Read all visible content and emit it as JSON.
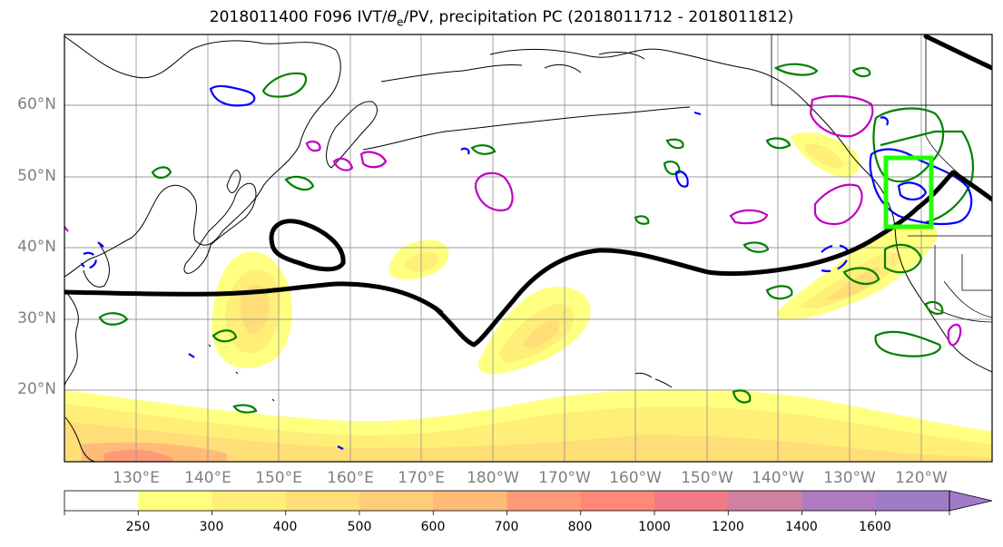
{
  "title": {
    "prefix": "2018011400 F096 IVT/",
    "theta": "θ",
    "theta_sub": "e",
    "suffix": "/PV, precipitation PC (2018011712 - 2018011812)"
  },
  "map": {
    "lat_labels": [
      "60°N",
      "50°N",
      "40°N",
      "30°N",
      "20°N"
    ],
    "lon_labels": [
      "130°E",
      "140°E",
      "150°E",
      "160°E",
      "170°E",
      "180°W",
      "170°W",
      "160°W",
      "150°W",
      "140°W",
      "130°W",
      "120°W"
    ],
    "lon_range_deg": [
      120,
      250
    ],
    "lat_range_deg": [
      10,
      70
    ],
    "grid": true,
    "colors": {
      "jet_contour": "#000000",
      "theta_e_contour": "#0000ff",
      "pv_contour": "#c000c0",
      "precip_pc_contour": "#008000",
      "highlight_box": "#22ff00"
    }
  },
  "colorbar": {
    "levels": [
      "250",
      "300",
      "400",
      "500",
      "600",
      "700",
      "800",
      "1000",
      "1200",
      "1400",
      "1600"
    ],
    "colors": [
      "#ffffff",
      "#ffff80",
      "#ffee77",
      "#ffdd77",
      "#ffcc77",
      "#ffbb77",
      "#ff9977",
      "#ff8877",
      "#f07a85",
      "#d080a0",
      "#b07bc0",
      "#a07cc8"
    ],
    "extend": "max"
  }
}
